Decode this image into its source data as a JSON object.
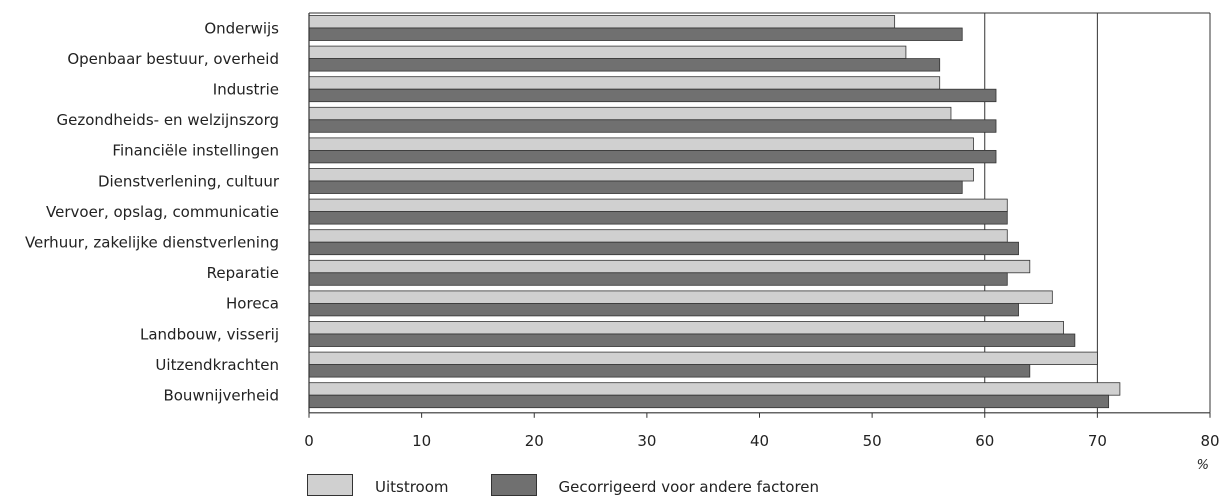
{
  "chart_data": {
    "type": "bar",
    "orientation": "horizontal",
    "categories": [
      "Onderwijs",
      "Openbaar bestuur, overheid",
      "Industrie",
      "Gezondheids- en welzijnszorg",
      "Financiële instellingen",
      "Dienstverlening, cultuur",
      "Vervoer, opslag, communicatie",
      "Verhuur, zakelijke dienstverlening",
      "Reparatie",
      "Horeca",
      "Landbouw, visserij",
      "Uitzendkrachten",
      "Bouwnijverheid"
    ],
    "series": [
      {
        "name": "Uitstroom",
        "color": "#d0d0d0",
        "values": [
          52,
          53,
          56,
          57,
          59,
          59,
          62,
          62,
          64,
          66,
          67,
          70,
          72
        ]
      },
      {
        "name": "Gecorrigeerd voor andere factoren",
        "color": "#707070",
        "values": [
          58,
          56,
          61,
          61,
          61,
          58,
          62,
          63,
          62,
          63,
          68,
          64,
          71
        ]
      }
    ],
    "xlim": [
      0,
      80
    ],
    "xticks": [
      "0",
      "10",
      "20",
      "30",
      "40",
      "50",
      "60",
      "70",
      "80"
    ],
    "xlabel": "%",
    "gridlines_x": [
      60,
      70
    ],
    "legend": "bottom-left"
  }
}
